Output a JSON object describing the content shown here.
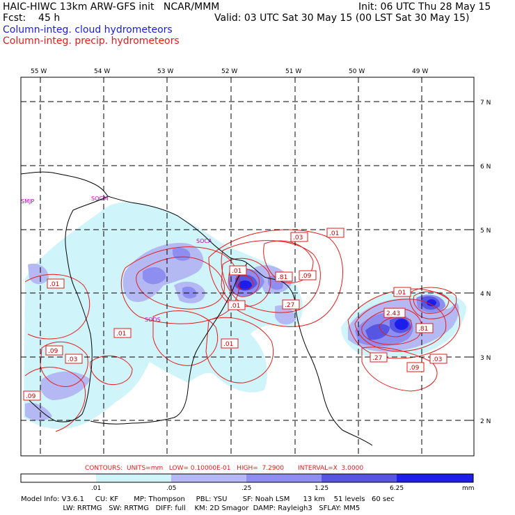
{
  "header": {
    "title": "HAIC-HIWC 13km ARW-GFS init   NCAR/MMM",
    "init": "Init: 06 UTC Thu 28 May 15",
    "fcst": "Fcst:    45 h",
    "valid": "Valid: 03 UTC Sat 30 May 15 (00 LST Sat 30 May 15)",
    "field1": "Column-integ. cloud hydrometeors",
    "field2": "Column-integ. precip. hydrometeors"
  },
  "colors": {
    "cloud_scale": [
      "#ffffff",
      "#cff5fb",
      "#b4b9f4",
      "#8e8ef0",
      "#5656e2",
      "#1e1eeb"
    ],
    "contour": "#e61a1a",
    "coast": "#000000",
    "station": "#c000c0"
  },
  "map": {
    "lon_labels": [
      "55 W",
      "54 W",
      "53 W",
      "52 W",
      "51 W",
      "50 W",
      "49 W"
    ],
    "lat_labels": [
      "7 N",
      "6 N",
      "5 N",
      "4 N",
      "3 N",
      "2 N"
    ],
    "stations": [
      "SMJP",
      "SOGM",
      "SOCA",
      "SOOS"
    ],
    "contour_labels": [
      ".01",
      ".01",
      ".09",
      ".03",
      ".09",
      ".01",
      ".01",
      ".03",
      ".01",
      ".09",
      ".81",
      ".27",
      "2.43",
      ".01",
      ".81",
      ".27",
      ".09",
      ".03",
      ".01"
    ]
  },
  "legend": {
    "contours_line": "CONTOURS:  UNITS=mm   LOW= 0.10000E-01   HIGH=  7.2900       INTERVAL=X  3.0000",
    "ticks": [
      ".01",
      ".05",
      ".25",
      "1.25",
      "6.25"
    ],
    "units": "mm"
  },
  "footer": {
    "line1": "Model Info: V3.6.1     CU: KF       MP: Thompson     PBL: YSU       SF: Noah LSM      13 km    51 levels   60 sec",
    "line2": "                   LW: RRTMG   SW: RRTMG   DIFF: full    KM: 2D Smagor  DAMP: Rayleigh3   SFLAY: MM5"
  }
}
